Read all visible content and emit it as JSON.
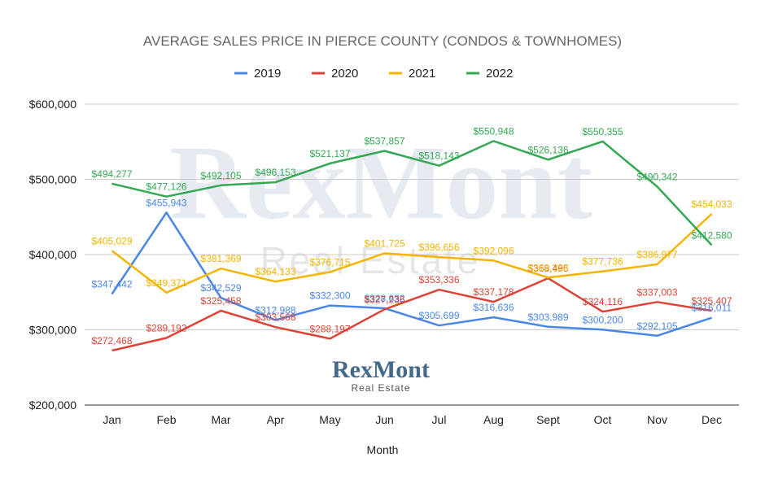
{
  "chart_data": {
    "type": "line",
    "title": "AVERAGE SALES PRICE IN PIERCE COUNTY (CONDOS & TOWNHOMES)",
    "xlabel": "Month",
    "ylabel": "",
    "ylim": [
      200000,
      600000
    ],
    "yticks": [
      "$200,000",
      "$300,000",
      "$400,000",
      "$500,000",
      "$600,000"
    ],
    "ytick_values": [
      200000,
      300000,
      400000,
      500000,
      600000
    ],
    "grid": true,
    "legend_position": "top-center",
    "categories": [
      "Jan",
      "Feb",
      "Mar",
      "Apr",
      "May",
      "Jun",
      "Jul",
      "Aug",
      "Sept",
      "Oct",
      "Nov",
      "Dec"
    ],
    "series": [
      {
        "name": "2019",
        "color": "#4a86e8",
        "values": [
          347442,
          455943,
          342529,
          312988,
          332300,
          328632,
          305699,
          316636,
          303989,
          300200,
          292105,
          316011
        ],
        "labels": [
          "$347,442",
          "$455,943",
          "$342,529",
          "$312,988",
          "$332,300",
          "$328,632",
          "$305,699",
          "$316,636",
          "$303,989",
          "$300,200",
          "$292,105",
          "$316,011"
        ]
      },
      {
        "name": "2020",
        "color": "#db4437",
        "values": [
          272468,
          289192,
          325458,
          303568,
          288197,
          327236,
          353336,
          337178,
          368495,
          324116,
          337003,
          325407
        ],
        "labels": [
          "$272,468",
          "$289,192",
          "$325,458",
          "$303,568",
          "$288,197",
          "$327,236",
          "$353,336",
          "$337,178",
          "$368,495",
          "$324,116",
          "$337,003",
          "$325,407"
        ]
      },
      {
        "name": "2021",
        "color": "#f4b400",
        "values": [
          405029,
          349371,
          381369,
          364133,
          376715,
          401725,
          396656,
          392096,
          369388,
          377736,
          386977,
          454033
        ],
        "labels": [
          "$405,029",
          "$349,371",
          "$381,369",
          "$364,133",
          "$376,715",
          "$401,725",
          "$396,656",
          "$392,096",
          "$369,388",
          "$377,736",
          "$386,977",
          "$454,033"
        ]
      },
      {
        "name": "2022",
        "color": "#34a853",
        "values": [
          494277,
          477126,
          492105,
          496153,
          521137,
          537857,
          518143,
          550948,
          526136,
          550355,
          490342,
          412580
        ],
        "labels": [
          "$494,277",
          "$477,126",
          "$492,105",
          "$496,153",
          "$521,137",
          "$537,857",
          "$518,143",
          "$550,948",
          "$526,136",
          "$550,355",
          "$490,342",
          "$412,580"
        ]
      }
    ]
  },
  "watermark": {
    "brand": "RexMont",
    "tagline": "Real Estate"
  },
  "logo": {
    "brand": "RexMont",
    "tagline": "Real Estate"
  }
}
